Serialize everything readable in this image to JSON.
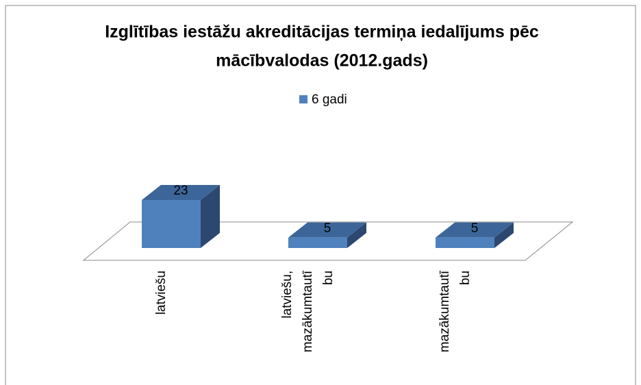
{
  "chart_data": {
    "type": "bar3d",
    "title": [
      "Izglītības iestāžu akreditācijas termiņa iedalījums pēc",
      "mācībvalodas (2012.gads)"
    ],
    "categories": [
      [
        "latviešu"
      ],
      [
        "latviešu,",
        "mazākumtautī",
        "bu"
      ],
      [
        "mazākumtautī",
        "bu"
      ]
    ],
    "series": [
      {
        "name": "6 gadi",
        "color": "#4f81bd",
        "values": [
          23,
          5,
          5
        ]
      }
    ],
    "legend": "top"
  }
}
